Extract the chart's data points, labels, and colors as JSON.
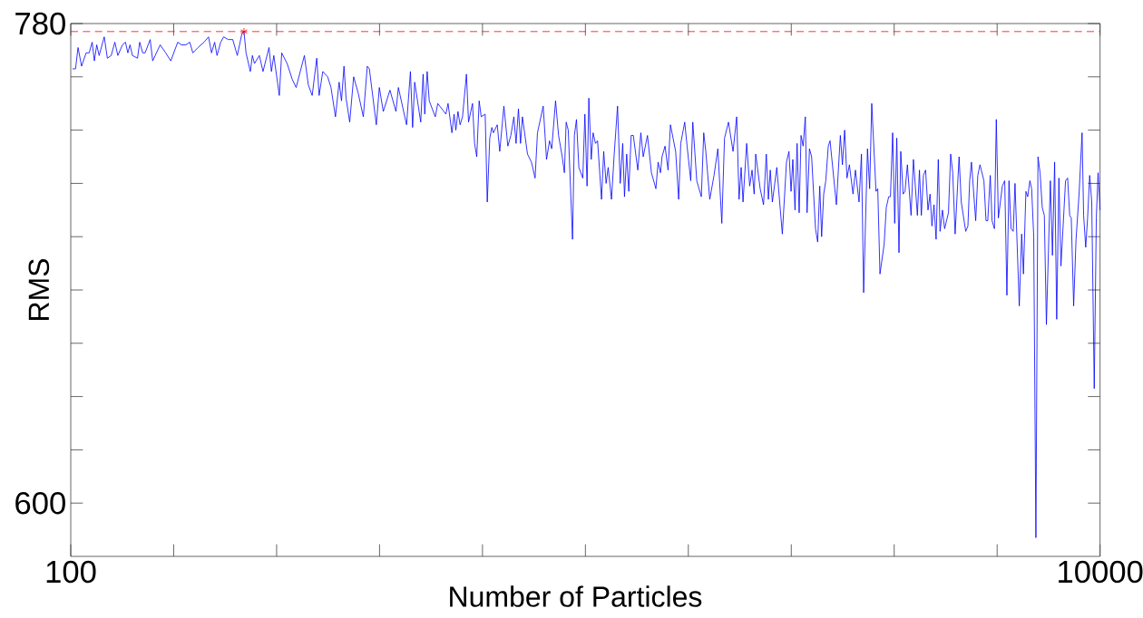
{
  "chart_data": {
    "type": "line",
    "xlabel": "Number of Particles",
    "ylabel": "RMS",
    "xlim": [
      100,
      10000
    ],
    "ylim": [
      580,
      780
    ],
    "xticks": [
      100,
      {
        "value": 1090,
        "label": null
      },
      {
        "value": 2080,
        "label": null
      },
      {
        "value": 3070,
        "label": null
      },
      {
        "value": 4060,
        "label": null
      },
      {
        "value": 5050,
        "label": null
      },
      {
        "value": 6040,
        "label": null
      },
      {
        "value": 7030,
        "label": null
      },
      {
        "value": 8020,
        "label": null
      },
      {
        "value": 9010,
        "label": null
      },
      10000
    ],
    "yticks": [
      600,
      {
        "value": 620,
        "label": null
      },
      {
        "value": 640,
        "label": null
      },
      {
        "value": 660,
        "label": null
      },
      {
        "value": 680,
        "label": null
      },
      {
        "value": 700,
        "label": null
      },
      {
        "value": 720,
        "label": null
      },
      {
        "value": 740,
        "label": null
      },
      {
        "value": 760,
        "label": null
      },
      780
    ],
    "ref_lines": [
      {
        "axis": "y",
        "value": 777,
        "color": "#ff0000",
        "line_style": "dashed"
      }
    ],
    "series": [
      {
        "color": "#0000ff",
        "marker": "none",
        "x": [
          117,
          146,
          170,
          204,
          248,
          277,
          306,
          327,
          350,
          373,
          422,
          452,
          489,
          524,
          553,
          597,
          626,
          649,
          670,
          693,
          742,
          763,
          792,
          815,
          864,
          888,
          960,
          1013,
          1062,
          1129,
          1164,
          1207,
          1245,
          1274,
          1324,
          1382,
          1425,
          1454,
          1484,
          1507,
          1542,
          1571,
          1614,
          1658,
          1702,
          1745,
          1766,
          1786,
          1827,
          1847,
          1867,
          1914,
          1949,
          2007,
          2030,
          2053,
          2106,
          2129,
          2181,
          2231,
          2268,
          2347,
          2385,
          2422,
          2466,
          2489,
          2524,
          2571,
          2603,
          2646,
          2681,
          2704,
          2728,
          2748,
          2783,
          2821,
          2864,
          2914,
          2952,
          2972,
          3039,
          3068,
          3106,
          3170,
          3228,
          3251,
          3330,
          3367,
          3388,
          3408,
          3466,
          3489,
          3505,
          3528,
          3548,
          3606,
          3630,
          3708,
          3729,
          3766,
          3787,
          3804,
          3824,
          3845,
          3868,
          3906,
          3926,
          3964,
          3984,
          4005,
          4028,
          4048,
          4086,
          4106,
          4130,
          4150,
          4165,
          4202,
          4226,
          4266,
          4304,
          4333,
          4362,
          4383,
          4406,
          4426,
          4444,
          4493,
          4531,
          4566,
          4589,
          4644,
          4676,
          4705,
          4726,
          4763,
          4792,
          4827,
          4848,
          4865,
          4885,
          4926,
          4944,
          4964,
          4987,
          5025,
          5045,
          5066,
          5083,
          5106,
          5124,
          5147,
          5167,
          5205,
          5226,
          5249,
          5269,
          5301,
          5327,
          5359,
          5385,
          5409,
          5426,
          5447,
          5467,
          5490,
          5511,
          5554,
          5583,
          5606,
          5647,
          5685,
          5728,
          5749,
          5772,
          5787,
          5816,
          5845,
          5868,
          5918,
          5947,
          5967,
          6005,
          6028,
          6063,
          6083,
          6121,
          6165,
          6188,
          6208,
          6246,
          6287,
          6324,
          6362,
          6388,
          6426,
          6470,
          6505,
          6528,
          6548,
          6566,
          6601,
          6630,
          6653,
          6673,
          6688,
          6731,
          6763,
          6790,
          6810,
          6828,
          6848,
          6891,
          6944,
          6984,
          7008,
          7028,
          7045,
          7066,
          7086,
          7106,
          7124,
          7144,
          7165,
          7182,
          7205,
          7226,
          7263,
          7284,
          7304,
          7322,
          7342,
          7362,
          7386,
          7403,
          7464,
          7502,
          7522,
          7543,
          7566,
          7589,
          7624,
          7647,
          7682,
          7705,
          7726,
          7763,
          7784,
          7804,
          7845,
          7862,
          7883,
          7923,
          7944,
          7967,
          7984,
          8005,
          8025,
          8045,
          8066,
          8083,
          8106,
          8124,
          8147,
          8182,
          8205,
          8243,
          8263,
          8281,
          8301,
          8322,
          8345,
          8365,
          8383,
          8403,
          8423,
          8444,
          8461,
          8484,
          8505,
          8542,
          8563,
          8583,
          8606,
          8644,
          8665,
          8708,
          8729,
          8746,
          8763,
          8804,
          8824,
          8845,
          8883,
          8903,
          8920,
          8944,
          8961,
          8984,
          9002,
          9022,
          9060,
          9083,
          9104,
          9124,
          9144,
          9165,
          9182,
          9223,
          9246,
          9263,
          9287,
          9304,
          9325,
          9342,
          9362,
          9383,
          9403,
          9423,
          9444,
          9464,
          9484,
          9522,
          9542,
          9563,
          9583,
          9604,
          9624,
          9668,
          9688,
          9708,
          9723,
          9746,
          9769,
          9798,
          9827,
          9842,
          9862,
          9880,
          9900,
          9920,
          9944,
          9964,
          9981,
          10000
        ],
        "values": [
          763,
          763,
          771,
          764,
          769,
          769,
          773,
          766,
          772,
          768,
          775,
          767,
          768,
          773,
          768,
          772,
          773,
          769,
          772,
          768,
          767,
          773,
          769,
          769,
          774,
          766,
          772,
          769,
          766,
          773,
          772,
          772,
          773,
          769,
          771,
          773,
          775,
          769,
          773,
          768,
          773,
          775,
          774,
          774,
          768,
          776,
          777,
          769,
          762,
          768,
          765,
          768,
          762,
          771,
          762,
          768,
          753,
          769,
          765,
          759,
          756,
          768,
          757,
          753,
          767,
          753,
          762,
          760,
          756,
          745,
          758,
          751,
          764,
          752,
          743,
          760,
          754,
          745,
          764,
          763,
          742,
          756,
          747,
          755,
          747,
          756,
          742,
          762,
          741,
          758,
          743,
          761,
          746,
          762,
          751,
          745,
          750,
          746,
          750,
          739,
          746,
          740,
          747,
          742,
          745,
          761,
          743,
          750,
          735,
          730,
          751,
          745,
          746,
          713,
          737,
          741,
          739,
          742,
          732,
          749,
          734,
          738,
          745,
          735,
          748,
          735,
          745,
          731,
          728,
          722,
          739,
          749,
          729,
          736,
          733,
          751,
          738,
          730,
          724,
          743,
          740,
          699,
          738,
          744,
          726,
          722,
          746,
          719,
          752,
          729,
          739,
          735,
          736,
          714,
          732,
          720,
          726,
          714,
          731,
          749,
          720,
          735,
          715,
          731,
          717,
          738,
          738,
          725,
          739,
          730,
          738,
          724,
          718,
          728,
          724,
          730,
          734,
          725,
          742,
          732,
          714,
          735,
          743,
          734,
          721,
          743,
          721,
          715,
          739,
          732,
          714,
          723,
          733,
          705,
          737,
          743,
          732,
          745,
          714,
          726,
          713,
          735,
          719,
          725,
          716,
          731,
          718,
          712,
          731,
          714,
          725,
          713,
          726,
          701,
          728,
          732,
          717,
          729,
          710,
          735,
          709,
          738,
          734,
          745,
          709,
          733,
          730,
          703,
          698,
          719,
          700,
          716,
          721,
          734,
          736,
          712,
          738,
          727,
          740,
          722,
          727,
          716,
          725,
          713,
          731,
          679,
          733,
          718,
          750,
          717,
          718,
          686,
          697,
          711,
          715,
          715,
          739,
          705,
          737,
          694,
          732,
          716,
          717,
          727,
          708,
          729,
          708,
          725,
          708,
          723,
          725,
          710,
          716,
          704,
          712,
          699,
          729,
          702,
          710,
          703,
          709,
          731,
          724,
          701,
          730,
          713,
          702,
          704,
          721,
          728,
          706,
          723,
          727,
          721,
          706,
          706,
          723,
          706,
          703,
          744,
          707,
          719,
          721,
          678,
          721,
          703,
          702,
          720,
          674,
          701,
          686,
          717,
          715,
          721,
          718,
          700,
          587,
          730,
          724,
          711,
          708,
          667,
          721,
          693,
          728,
          669,
          722,
          689,
          721,
          722,
          708,
          707,
          674,
          699,
          716,
          739,
          708,
          696,
          707,
          723,
          713,
          643,
          707,
          724,
          710
        ]
      },
      {
        "type": "scatter",
        "color": "#ff0000",
        "marker": "cross",
        "x": [
          1766
        ],
        "values": [
          777
        ]
      }
    ]
  }
}
